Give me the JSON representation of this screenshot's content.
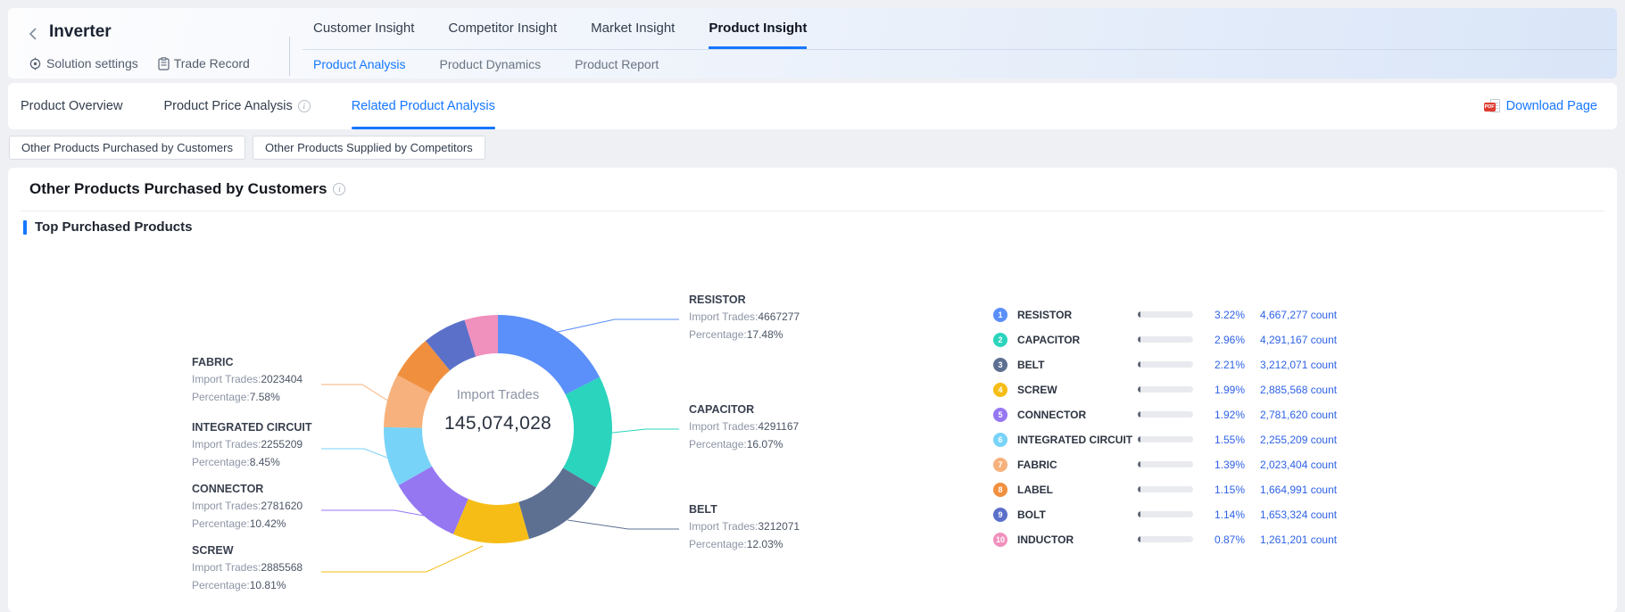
{
  "page": {
    "background": "#eef0f4",
    "accent_color": "#1677ff",
    "link_color": "#2e62e6"
  },
  "header": {
    "title": "Inverter",
    "quick_links": [
      {
        "label": "Solution settings",
        "icon": "gear-icon"
      },
      {
        "label": "Trade Record",
        "icon": "clipboard-icon"
      }
    ],
    "tabs": [
      {
        "label": "Customer Insight",
        "active": false
      },
      {
        "label": "Competitor Insight",
        "active": false
      },
      {
        "label": "Market Insight",
        "active": false
      },
      {
        "label": "Product Insight",
        "active": true
      }
    ],
    "subtabs": [
      {
        "label": "Product Analysis",
        "active": true
      },
      {
        "label": "Product Dynamics",
        "active": false
      },
      {
        "label": "Product Report",
        "active": false
      }
    ]
  },
  "secondary_nav": {
    "tabs": [
      {
        "label": "Product Overview",
        "info": false,
        "active": false
      },
      {
        "label": "Product Price Analysis",
        "info": true,
        "active": false
      },
      {
        "label": "Related Product Analysis",
        "info": false,
        "active": true
      }
    ],
    "download": {
      "label": "Download Page",
      "icon": "pdf-icon"
    }
  },
  "view_buttons": [
    {
      "label": "Other Products Purchased by Customers"
    },
    {
      "label": "Other Products Supplied by Competitors"
    }
  ],
  "section": {
    "title": "Other Products Purchased by Customers",
    "has_info": true,
    "subtitle": "Top Purchased Products"
  },
  "chart_data": {
    "type": "pie",
    "variant": "donut",
    "title": "Top Purchased Products",
    "center": {
      "label": "Import Trades",
      "value": "145,074,028"
    },
    "callout_labels": {
      "trades": "Import Trades:",
      "percentage": "Percentage:"
    },
    "count_unit": "count",
    "legend_position": "right",
    "items": [
      {
        "rank": 1,
        "name": "RESISTOR",
        "import_trades": 4667277,
        "donut_percentage": "17.48%",
        "share_percentage": "3.22%",
        "count_display": "4,667,277",
        "color": "#5B8FF9",
        "callout": true
      },
      {
        "rank": 2,
        "name": "CAPACITOR",
        "import_trades": 4291167,
        "donut_percentage": "16.07%",
        "share_percentage": "2.96%",
        "count_display": "4,291,167",
        "color": "#2BD4BD",
        "callout": true
      },
      {
        "rank": 3,
        "name": "BELT",
        "import_trades": 3212071,
        "donut_percentage": "12.03%",
        "share_percentage": "2.21%",
        "count_display": "3,212,071",
        "color": "#5D7092",
        "callout": true
      },
      {
        "rank": 4,
        "name": "SCREW",
        "import_trades": 2885568,
        "donut_percentage": "10.81%",
        "share_percentage": "1.99%",
        "count_display": "2,885,568",
        "color": "#F6BD16",
        "callout": true
      },
      {
        "rank": 5,
        "name": "CONNECTOR",
        "import_trades": 2781620,
        "donut_percentage": "10.42%",
        "share_percentage": "1.92%",
        "count_display": "2,781,620",
        "color": "#9577F2",
        "callout": true
      },
      {
        "rank": 6,
        "name": "INTEGRATED CIRCUIT",
        "import_trades": 2255209,
        "donut_percentage": "8.45%",
        "share_percentage": "1.55%",
        "count_display": "2,255,209",
        "color": "#78D3F8",
        "callout": true
      },
      {
        "rank": 7,
        "name": "FABRIC",
        "import_trades": 2023404,
        "donut_percentage": "7.58%",
        "share_percentage": "1.39%",
        "count_display": "2,023,404",
        "color": "#F7B17C",
        "callout": true
      },
      {
        "rank": 8,
        "name": "LABEL",
        "import_trades": 1664991,
        "donut_percentage": null,
        "share_percentage": "1.15%",
        "count_display": "1,664,991",
        "color": "#F0903F",
        "callout": false
      },
      {
        "rank": 9,
        "name": "BOLT",
        "import_trades": 1653324,
        "donut_percentage": null,
        "share_percentage": "1.14%",
        "count_display": "1,653,324",
        "color": "#5B70C9",
        "callout": false
      },
      {
        "rank": 10,
        "name": "INDUCTOR",
        "import_trades": 1261201,
        "donut_percentage": null,
        "share_percentage": "0.87%",
        "count_display": "1,261,201",
        "color": "#F090BC",
        "callout": false
      }
    ]
  }
}
